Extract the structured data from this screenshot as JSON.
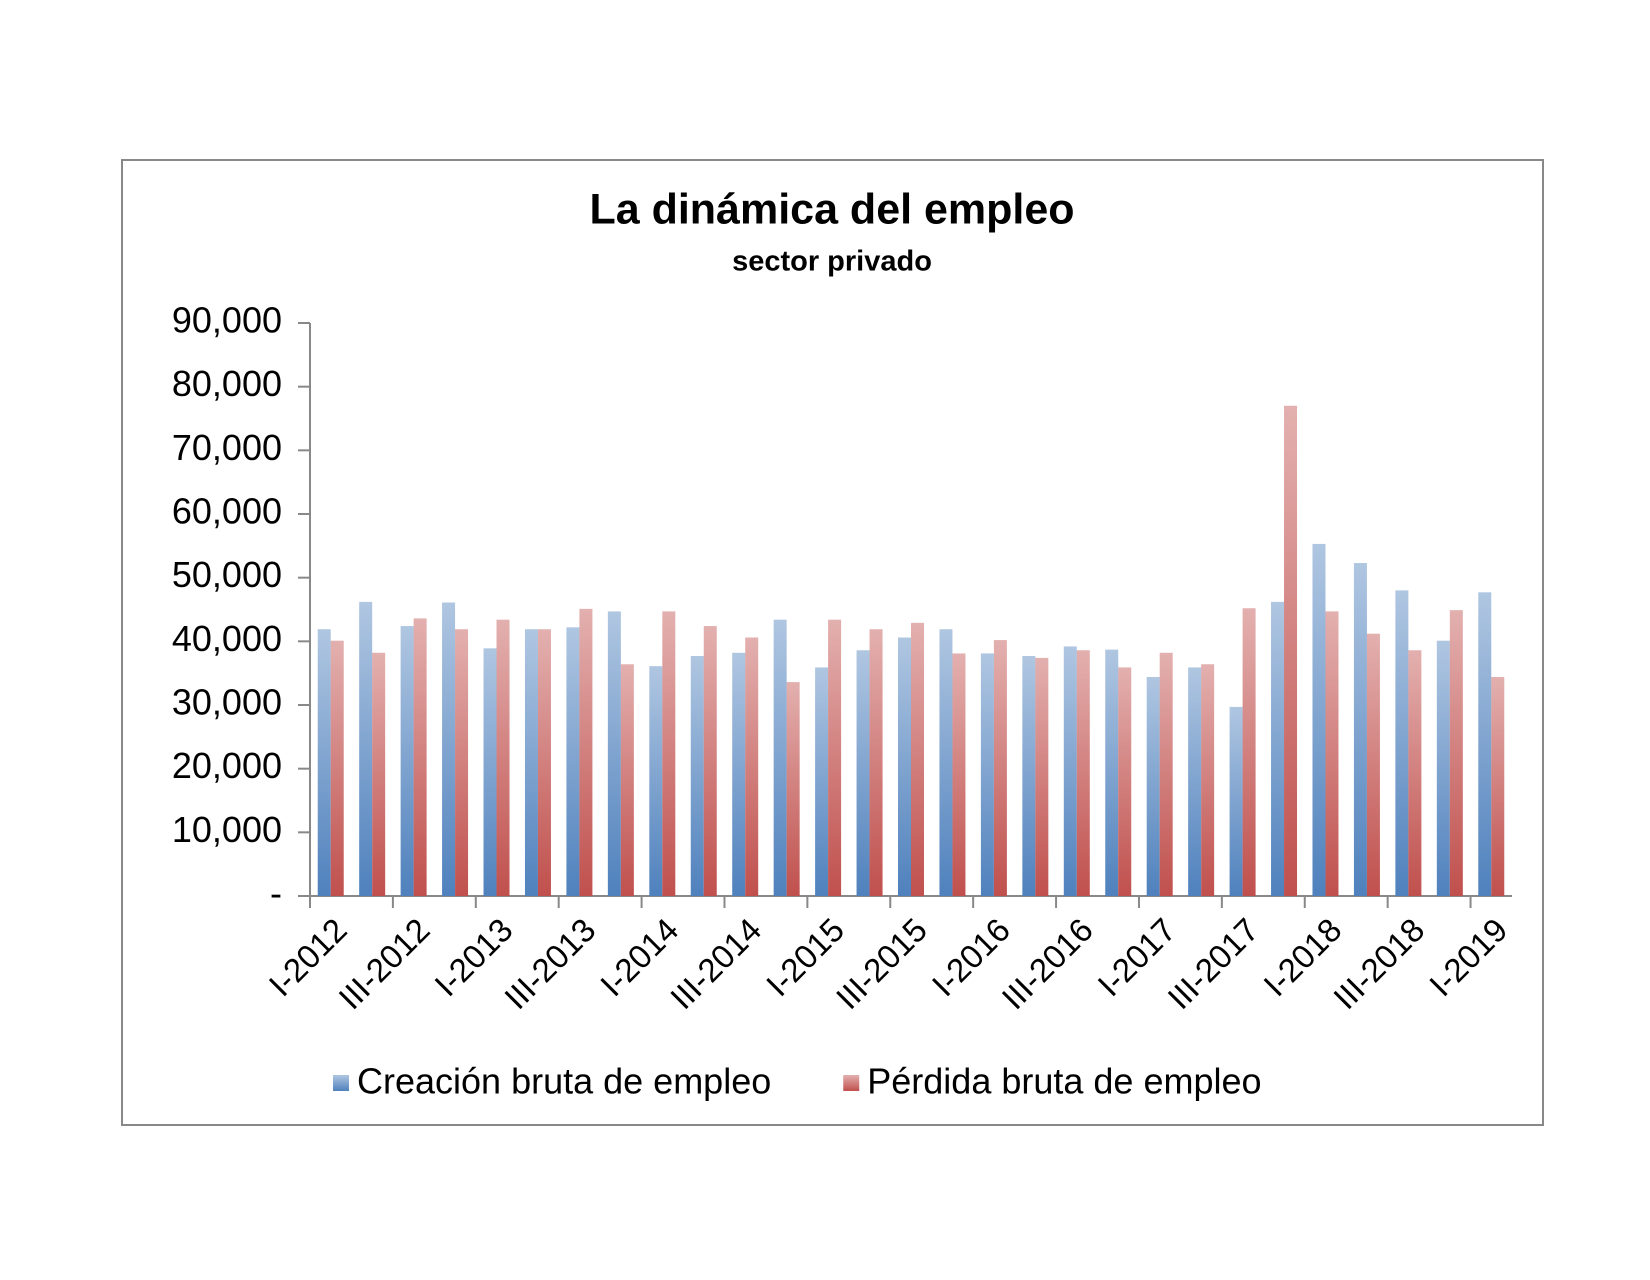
{
  "chart_data": {
    "type": "bar",
    "title": "La dinámica del empleo",
    "subtitle": "sector privado",
    "categories": [
      "I-2012",
      null,
      "III-2012",
      null,
      "I-2013",
      null,
      "III-2013",
      null,
      "I-2014",
      null,
      "III-2014",
      null,
      "I-2015",
      null,
      "III-2015",
      null,
      "I-2016",
      null,
      "III-2016",
      null,
      "I-2017",
      null,
      "III-2017",
      null,
      "I-2018",
      null,
      "III-2018",
      null,
      "I-2019"
    ],
    "series": [
      {
        "name": "Creación bruta de empleo",
        "color": "#4f81bd",
        "values": [
          41900,
          46200,
          42400,
          46100,
          38900,
          41900,
          42200,
          44700,
          36100,
          37700,
          38200,
          43400,
          35900,
          38600,
          40600,
          41900,
          38100,
          37700,
          39200,
          38700,
          34400,
          35900,
          29700,
          46200,
          55300,
          52300,
          48000,
          40100,
          47700
        ]
      },
      {
        "name": "Pérdida bruta de empleo",
        "color": "#c0504d",
        "values": [
          40100,
          38200,
          43600,
          41900,
          43400,
          41900,
          45100,
          36400,
          44700,
          42400,
          40600,
          33600,
          43400,
          41900,
          42900,
          38100,
          40200,
          37400,
          38600,
          35900,
          38200,
          36400,
          45200,
          77000,
          44700,
          41200,
          38600,
          44900,
          34400
        ]
      }
    ],
    "ylim": [
      0,
      90000
    ],
    "yticks": [
      {
        "value": 0,
        "label": "-"
      },
      {
        "value": 10000,
        "label": "10,000"
      },
      {
        "value": 20000,
        "label": "20,000"
      },
      {
        "value": 30000,
        "label": "30,000"
      },
      {
        "value": 40000,
        "label": "40,000"
      },
      {
        "value": 50000,
        "label": "50,000"
      },
      {
        "value": 60000,
        "label": "60,000"
      },
      {
        "value": 70000,
        "label": "70,000"
      },
      {
        "value": 80000,
        "label": "80,000"
      },
      {
        "value": 90000,
        "label": "90,000"
      }
    ],
    "grid": false,
    "legend": "bottom"
  }
}
